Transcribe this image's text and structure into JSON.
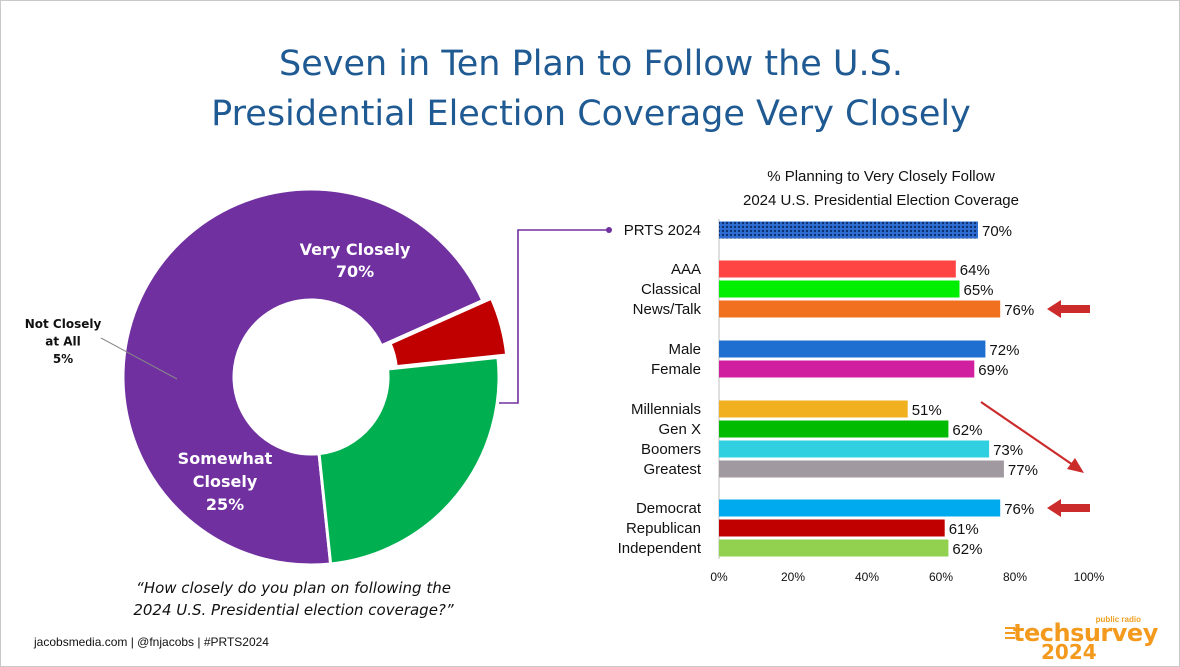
{
  "title_lines": [
    "Seven in Ten Plan to Follow the U.S.",
    "Presidential Election Coverage Very Closely"
  ],
  "donut": {
    "slices": [
      {
        "label": "Very Closely",
        "value_label": "70%",
        "value": 70,
        "color": "#7030a0"
      },
      {
        "label": "Somewhat Closely",
        "value_label": "25%",
        "value": 25,
        "color": "#00b050"
      },
      {
        "label": "Not Closely at All",
        "value_label": "5%",
        "value": 5,
        "color": "#c00000"
      }
    ]
  },
  "question_lines": [
    "“How closely do you plan on following the",
    "2024 U.S. Presidential election coverage?”"
  ],
  "footer": "jacobsmedia.com   |   @fnjacobs   |   #PRTS2024",
  "logo": {
    "tagline": "public radio",
    "brand": "techsurvey",
    "year": "2024"
  },
  "chart_data": [
    {
      "type": "pie",
      "categories": [
        "Very Closely",
        "Somewhat Closely",
        "Not Closely at All"
      ],
      "values": [
        70,
        25,
        5
      ]
    },
    {
      "type": "bar",
      "orientation": "horizontal",
      "title_lines": [
        "% Planning to Very Closely Follow",
        "2024 U.S. Presidential Election Coverage"
      ],
      "categories": [
        "PRTS 2024",
        "AAA",
        "Classical",
        "News/Talk",
        "Male",
        "Female",
        "Millennials",
        "Gen X",
        "Boomers",
        "Greatest",
        "Democrat",
        "Republican",
        "Independent"
      ],
      "values": [
        70,
        64,
        65,
        76,
        72,
        69,
        51,
        62,
        73,
        77,
        76,
        61,
        62
      ],
      "value_labels": [
        "70%",
        "64%",
        "65%",
        "76%",
        "72%",
        "69%",
        "51%",
        "62%",
        "73%",
        "77%",
        "76%",
        "61%",
        "62%"
      ],
      "colors": [
        "#2f6fd6",
        "#ff4444",
        "#00ee00",
        "#f07020",
        "#1f6fd0",
        "#d020a0",
        "#f0b020",
        "#00bb00",
        "#30d0e0",
        "#a09aa0",
        "#00aaee",
        "#c00000",
        "#92d050"
      ],
      "groups": [
        [
          0
        ],
        [
          1,
          2,
          3
        ],
        [
          4,
          5
        ],
        [
          6,
          7,
          8,
          9
        ],
        [
          10,
          11,
          12
        ]
      ],
      "xlim": [
        0,
        100
      ],
      "xticks": [
        "0%",
        "20%",
        "40%",
        "60%",
        "80%",
        "100%"
      ],
      "highlight_arrows": [
        "News/Talk",
        "Democrat"
      ],
      "trend_arrow": "Millennials to Greatest"
    }
  ]
}
